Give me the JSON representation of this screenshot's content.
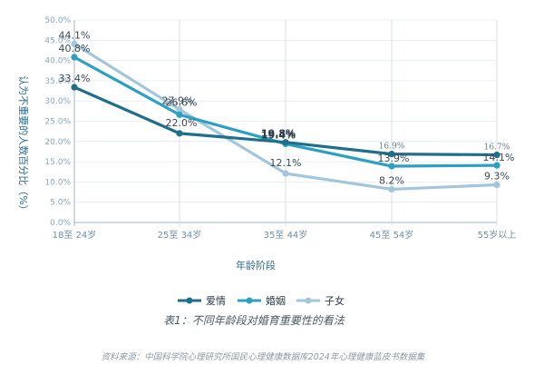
{
  "chart_data": {
    "type": "line",
    "categories": [
      "18至 24岁",
      "25至 34岁",
      "35至 44岁",
      "45至 54岁",
      "55岁以上"
    ],
    "series": [
      {
        "name": "爱情",
        "values": [
          33.4,
          22.0,
          19.8,
          16.9,
          16.7
        ],
        "labels": [
          "33.4%",
          "22.0%",
          "19.8%",
          "16.9%",
          "16.7%"
        ],
        "color": "#1f6f8b"
      },
      {
        "name": "婚姻",
        "values": [
          40.8,
          26.6,
          19.4,
          13.9,
          14.1
        ],
        "labels": [
          "40.8%",
          "26.6%",
          "19.4%",
          "13.9%",
          "14.1%"
        ],
        "color": "#2b9fc4"
      },
      {
        "name": "子女",
        "values": [
          44.1,
          27.9,
          12.1,
          8.2,
          9.3
        ],
        "labels": [
          "44.1%",
          "27.9%",
          "12.1%",
          "8.2%",
          "9.3%"
        ],
        "color": "#a3c6dc"
      }
    ],
    "yticks": [
      "0.0%",
      "5.0%",
      "10.0%",
      "15.0%",
      "20.0%",
      "25.0%",
      "30.0%",
      "35.0%",
      "40.0%",
      "45.0%",
      "50.0%"
    ],
    "ylim": [
      0,
      50
    ],
    "xlabel": "年龄阶段",
    "ylabel": "认为不重要的人数百分比（%）",
    "legend_position": "bottom",
    "caption": "表1：不同年龄段对婚育重要性的看法",
    "source": "资料来源：中国科学院心理研究所国民心理健康数据库2024年心理健康蓝皮书数据集"
  }
}
